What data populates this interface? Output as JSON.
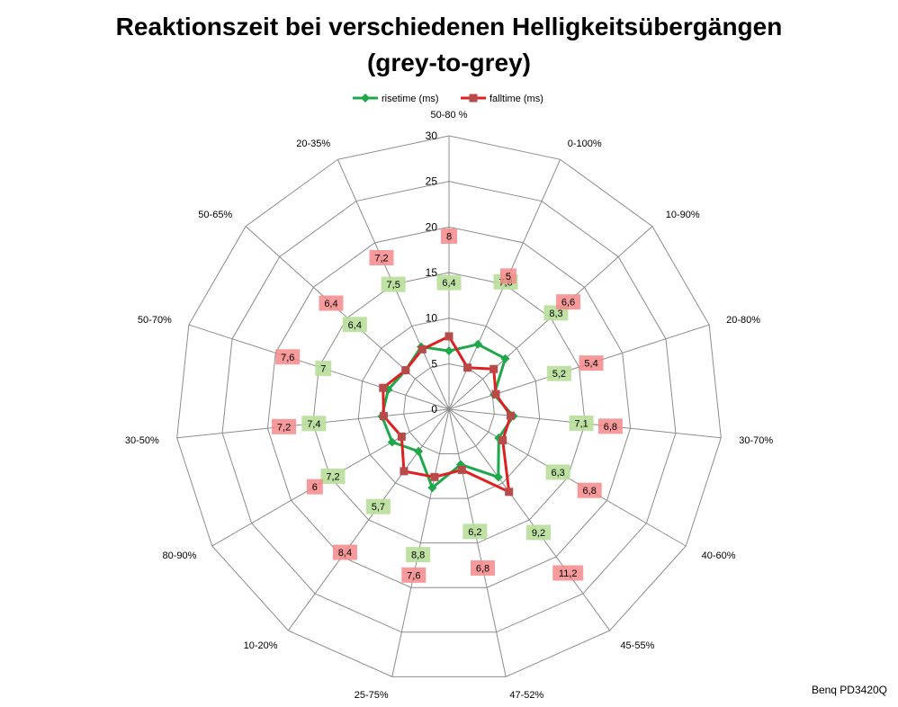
{
  "chart_data": {
    "type": "radar",
    "title_line1": "Reaktionszeit bei verschiedenen Helligkeitsübergängen",
    "title_line2": "(grey-to-grey)",
    "categories": [
      "50-80 %",
      "0-100%",
      "10-90%",
      "20-80%",
      "30-70%",
      "40-60%",
      "45-55%",
      "47-52%",
      "25-75%",
      "10-20%",
      "80-90%",
      "30-50%",
      "50-70%",
      "50-65%",
      "20-35%"
    ],
    "rmax": 30,
    "ticks": [
      0,
      5,
      10,
      15,
      20,
      25,
      30
    ],
    "series": [
      {
        "name": "risetime (ms)",
        "color": "#1ea84a",
        "label_bg": "#b8df9a",
        "marker": "diamond",
        "values": [
          6.4,
          7.8,
          8.3,
          5.2,
          7.1,
          6.3,
          9.2,
          6.2,
          8.8,
          5.7,
          7.2,
          7.4,
          7.0,
          6.4,
          7.5
        ],
        "labels": [
          "6,4",
          "7,8",
          "8,3",
          "5,2",
          "7,1",
          "6,3",
          "9,2",
          "6,2",
          "8,8",
          "5,7",
          "7,2",
          "7,4",
          "7",
          "6,4",
          "7,5"
        ]
      },
      {
        "name": "falltime (ms)",
        "color": "#e02020",
        "label_bg": "#f4888a",
        "marker": "square",
        "values": [
          8.0,
          5.0,
          6.6,
          5.4,
          6.8,
          6.8,
          11.2,
          6.8,
          7.6,
          8.4,
          6.0,
          7.2,
          7.6,
          6.4,
          7.2
        ],
        "labels": [
          "8",
          "5",
          "6,6",
          "5,4",
          "6,8",
          "6,8",
          "11,2",
          "6,8",
          "7,6",
          "8,4",
          "6",
          "7,2",
          "7,6",
          "6,4",
          "7,2"
        ]
      }
    ],
    "legend_position": "top",
    "grid": true
  },
  "watermark": "Benq PD3420Q"
}
